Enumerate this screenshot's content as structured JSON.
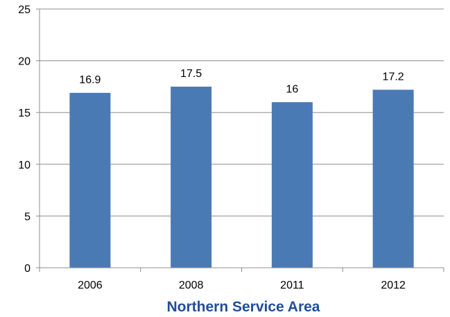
{
  "chart_data": {
    "type": "bar",
    "categories": [
      "2006",
      "2008",
      "2011",
      "2012"
    ],
    "values": [
      16.9,
      17.5,
      16,
      17.2
    ],
    "data_labels": [
      "16.9",
      "17.5",
      "16",
      "17.2"
    ],
    "title": "",
    "xlabel": "Northern Service Area",
    "ylabel": "",
    "ylim": [
      0,
      25
    ],
    "yticks": [
      0,
      5,
      10,
      15,
      20,
      25
    ],
    "grid": true,
    "legend": "none",
    "colors": {
      "bar": "#4A7AB4",
      "grid": "#8C8C8C",
      "axis": "#8C8C8C",
      "xlabel": "#1F4E9A"
    }
  }
}
